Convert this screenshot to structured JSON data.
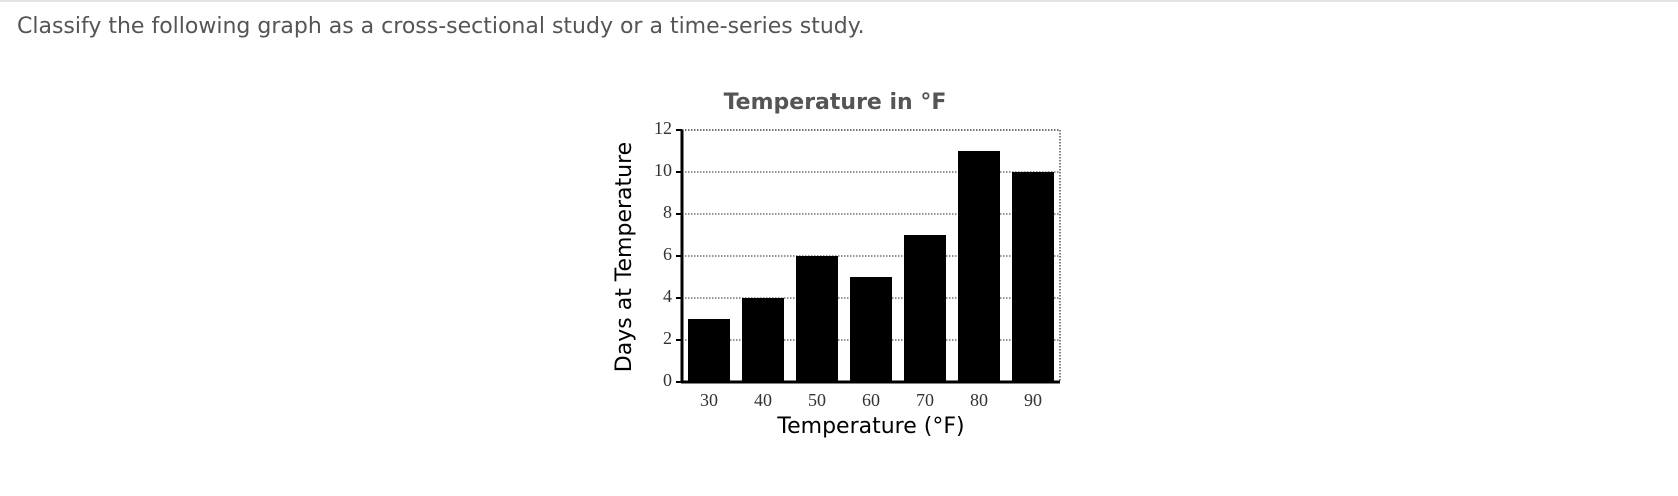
{
  "question": "Classify the following graph as a cross-sectional study or a time-series study.",
  "chart_data": {
    "type": "bar",
    "title": "Temperature in °F",
    "x_label": "Temperature (°F)",
    "y_label": "Days at Temperature",
    "categories": [
      "30",
      "40",
      "50",
      "60",
      "70",
      "80",
      "90"
    ],
    "values": [
      3,
      4,
      6,
      5,
      7,
      11,
      10
    ],
    "color": "#000000",
    "ylim": [
      0,
      12
    ],
    "yticks": [
      0,
      2,
      4,
      6,
      8,
      10,
      12
    ],
    "grid": true
  }
}
